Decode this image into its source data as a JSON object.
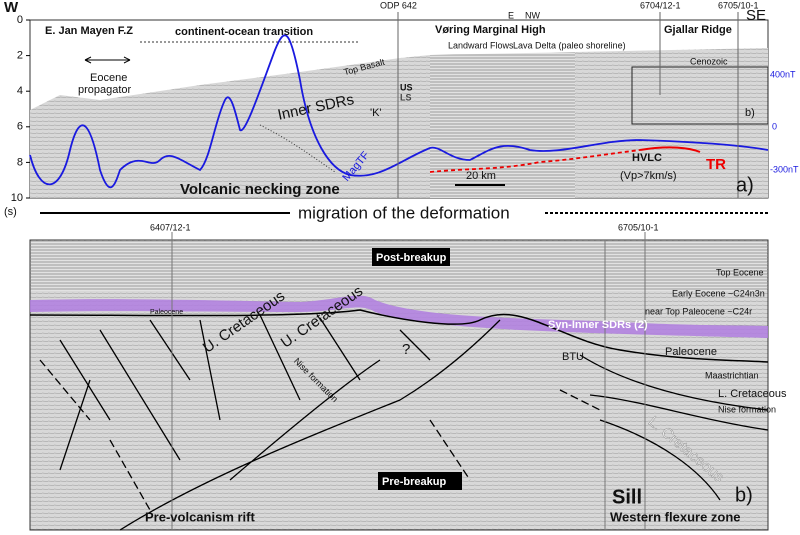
{
  "panel_a": {
    "depth_axis": {
      "ticks": [
        0,
        2,
        4,
        6,
        8,
        10
      ],
      "unit": "(s)",
      "range": [
        0,
        10
      ]
    },
    "mag_axis": {
      "ticks": [
        "400nT",
        "0",
        "-300nT"
      ]
    },
    "labels": {
      "west": "W",
      "jan_mayen": "E. Jan Mayen F.Z",
      "cot": "continent-ocean transition",
      "odp": "ODP 642",
      "voring": "Vøring Marginal High",
      "e": "E",
      "nw": "NW",
      "well1": "6704/12-1",
      "well2": "6705/10-1",
      "se": "SE",
      "gjallar": "Gjallar Ridge",
      "landward": "Landward Flows",
      "delta": "Lava Delta (paleo shoreline)",
      "eocene": "Eocene",
      "propagator": "propagator",
      "top_basalt": "Top Basalt",
      "us": "US",
      "ls": "LS",
      "inner": "Inner SDRs",
      "k": "'K'",
      "cenozoic": "Cenozoic",
      "b_inset": "b)",
      "magtf": "MagTF",
      "hvlc": "HVLC",
      "vp": "(Vp>7km/s)",
      "tr": "TR",
      "scale": "20 km",
      "necking": "Volcanic necking zone",
      "panel": "a)"
    }
  },
  "migration": "migration of the deformation",
  "panel_b": {
    "labels": {
      "well1": "6407/12-1",
      "well2": "6705/10-1",
      "post": "Post-breakup",
      "top_eocene": "Top Eocene",
      "early_eocene": "Early Eocene ~C24n3n",
      "syn": "Syn-Inner SDRs (2)",
      "near_top": "near Top Paleocene ~C24r",
      "paleocene_small": "Paleocene",
      "ucret1": "U. Cretaceous",
      "ucret2": "U. Cretaceous",
      "nise1": "Nise formation",
      "q": "?",
      "btu": "BTU",
      "paleocene": "Paleocene",
      "maast": "Maastrichtian",
      "lcret": "L. Cretaceous",
      "nise2": "Nise formation",
      "lcret2": "L. Cretaceous",
      "pre": "Pre-breakup",
      "sill": "Sill",
      "rift": "Pre-volcanism rift",
      "flexure": "Western flexure zone",
      "panel": "b)"
    }
  }
}
